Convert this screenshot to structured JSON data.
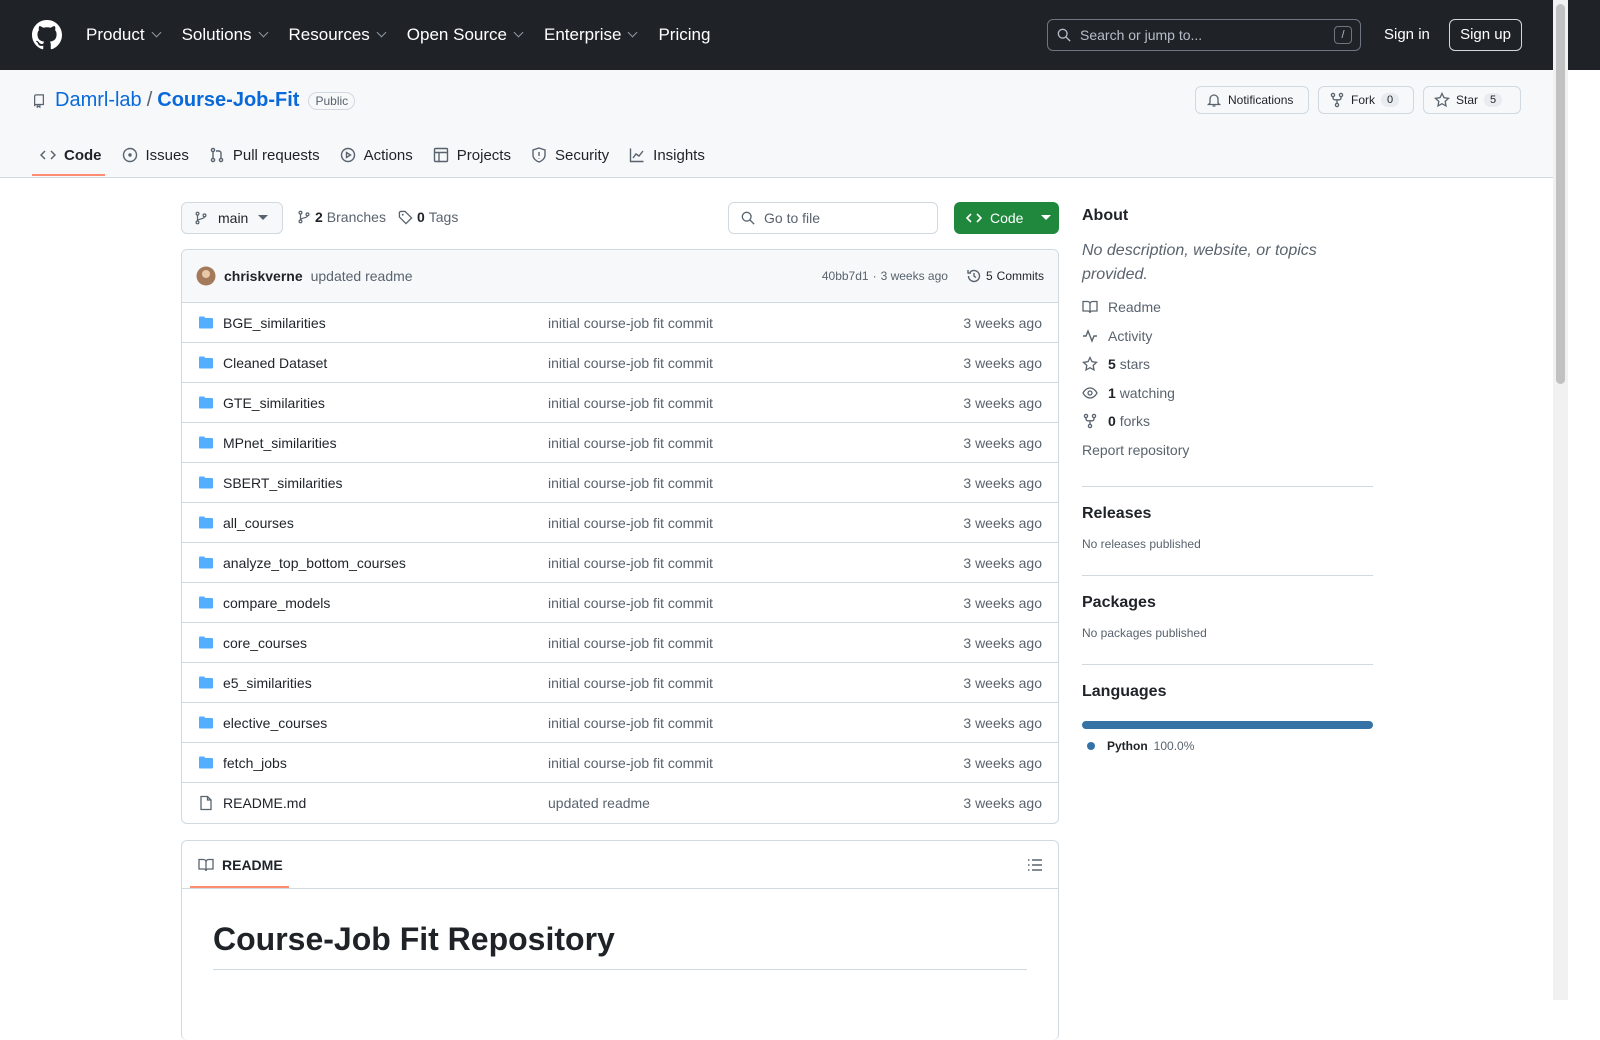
{
  "header": {
    "nav": [
      "Product",
      "Solutions",
      "Resources",
      "Open Source",
      "Enterprise",
      "Pricing"
    ],
    "search": "Search or jump to...",
    "search_key": "/",
    "sign_in": "Sign in",
    "sign_up": "Sign up"
  },
  "repo": {
    "owner": "Damrl-lab",
    "slash": "/",
    "name": "Course-Job-Fit",
    "visibility": "Public",
    "notifications": "Notifications",
    "fork": "Fork",
    "fork_count": 0,
    "star": "Star",
    "star_count": 5
  },
  "tabs": [
    "Code",
    "Issues",
    "Pull requests",
    "Actions",
    "Projects",
    "Security",
    "Insights"
  ],
  "toolbar": {
    "branch": "main",
    "branch_count": 2,
    "branches": "Branches",
    "tag_count": 0,
    "tags": "Tags",
    "go_to_file": "Go to file",
    "code": "Code"
  },
  "commit": {
    "author": "chriskverne",
    "message": "updated readme",
    "sha": "40bb7d1",
    "dot": "·",
    "time": "3 weeks ago",
    "count": 5,
    "commits": "Commits"
  },
  "files": {
    "rows": [
      {
        "icon": "folder",
        "name": "BGE_similarities",
        "message": "initial course-job fit commit",
        "time": "3 weeks ago"
      },
      {
        "icon": "folder",
        "name": "Cleaned Dataset",
        "message": "initial course-job fit commit",
        "time": "3 weeks ago"
      },
      {
        "icon": "folder",
        "name": "GTE_similarities",
        "message": "initial course-job fit commit",
        "time": "3 weeks ago"
      },
      {
        "icon": "folder",
        "name": "MPnet_similarities",
        "message": "initial course-job fit commit",
        "time": "3 weeks ago"
      },
      {
        "icon": "folder",
        "name": "SBERT_similarities",
        "message": "initial course-job fit commit",
        "time": "3 weeks ago"
      },
      {
        "icon": "folder",
        "name": "all_courses",
        "message": "initial course-job fit commit",
        "time": "3 weeks ago"
      },
      {
        "icon": "folder",
        "name": "analyze_top_bottom_courses",
        "message": "initial course-job fit commit",
        "time": "3 weeks ago"
      },
      {
        "icon": "folder",
        "name": "compare_models",
        "message": "initial course-job fit commit",
        "time": "3 weeks ago"
      },
      {
        "icon": "folder",
        "name": "core_courses",
        "message": "initial course-job fit commit",
        "time": "3 weeks ago"
      },
      {
        "icon": "folder",
        "name": "e5_similarities",
        "message": "initial course-job fit commit",
        "time": "3 weeks ago"
      },
      {
        "icon": "folder",
        "name": "elective_courses",
        "message": "initial course-job fit commit",
        "time": "3 weeks ago"
      },
      {
        "icon": "folder",
        "name": "fetch_jobs",
        "message": "initial course-job fit commit",
        "time": "3 weeks ago"
      },
      {
        "icon": "file",
        "name": "README.md",
        "message": "updated readme",
        "time": "3 weeks ago"
      }
    ]
  },
  "readme": {
    "tab": "README",
    "heading": "Course-Job Fit Repository"
  },
  "about": {
    "title": "About",
    "description": "No description, website, or topics provided.",
    "readme": "Readme",
    "activity": "Activity",
    "stars_count": 5,
    "stars": "stars",
    "watching_count": 1,
    "watching": "watching",
    "forks_count": 0,
    "forks": "forks",
    "report": "Report repository"
  },
  "releases": {
    "title": "Releases",
    "text": "No releases published"
  },
  "packages": {
    "title": "Packages",
    "text": "No packages published"
  },
  "languages": {
    "title": "Languages",
    "names": [
      "Python"
    ],
    "colors": [
      "#3572A5"
    ],
    "values": [
      100
    ],
    "value_labels": [
      "100.0%"
    ]
  }
}
